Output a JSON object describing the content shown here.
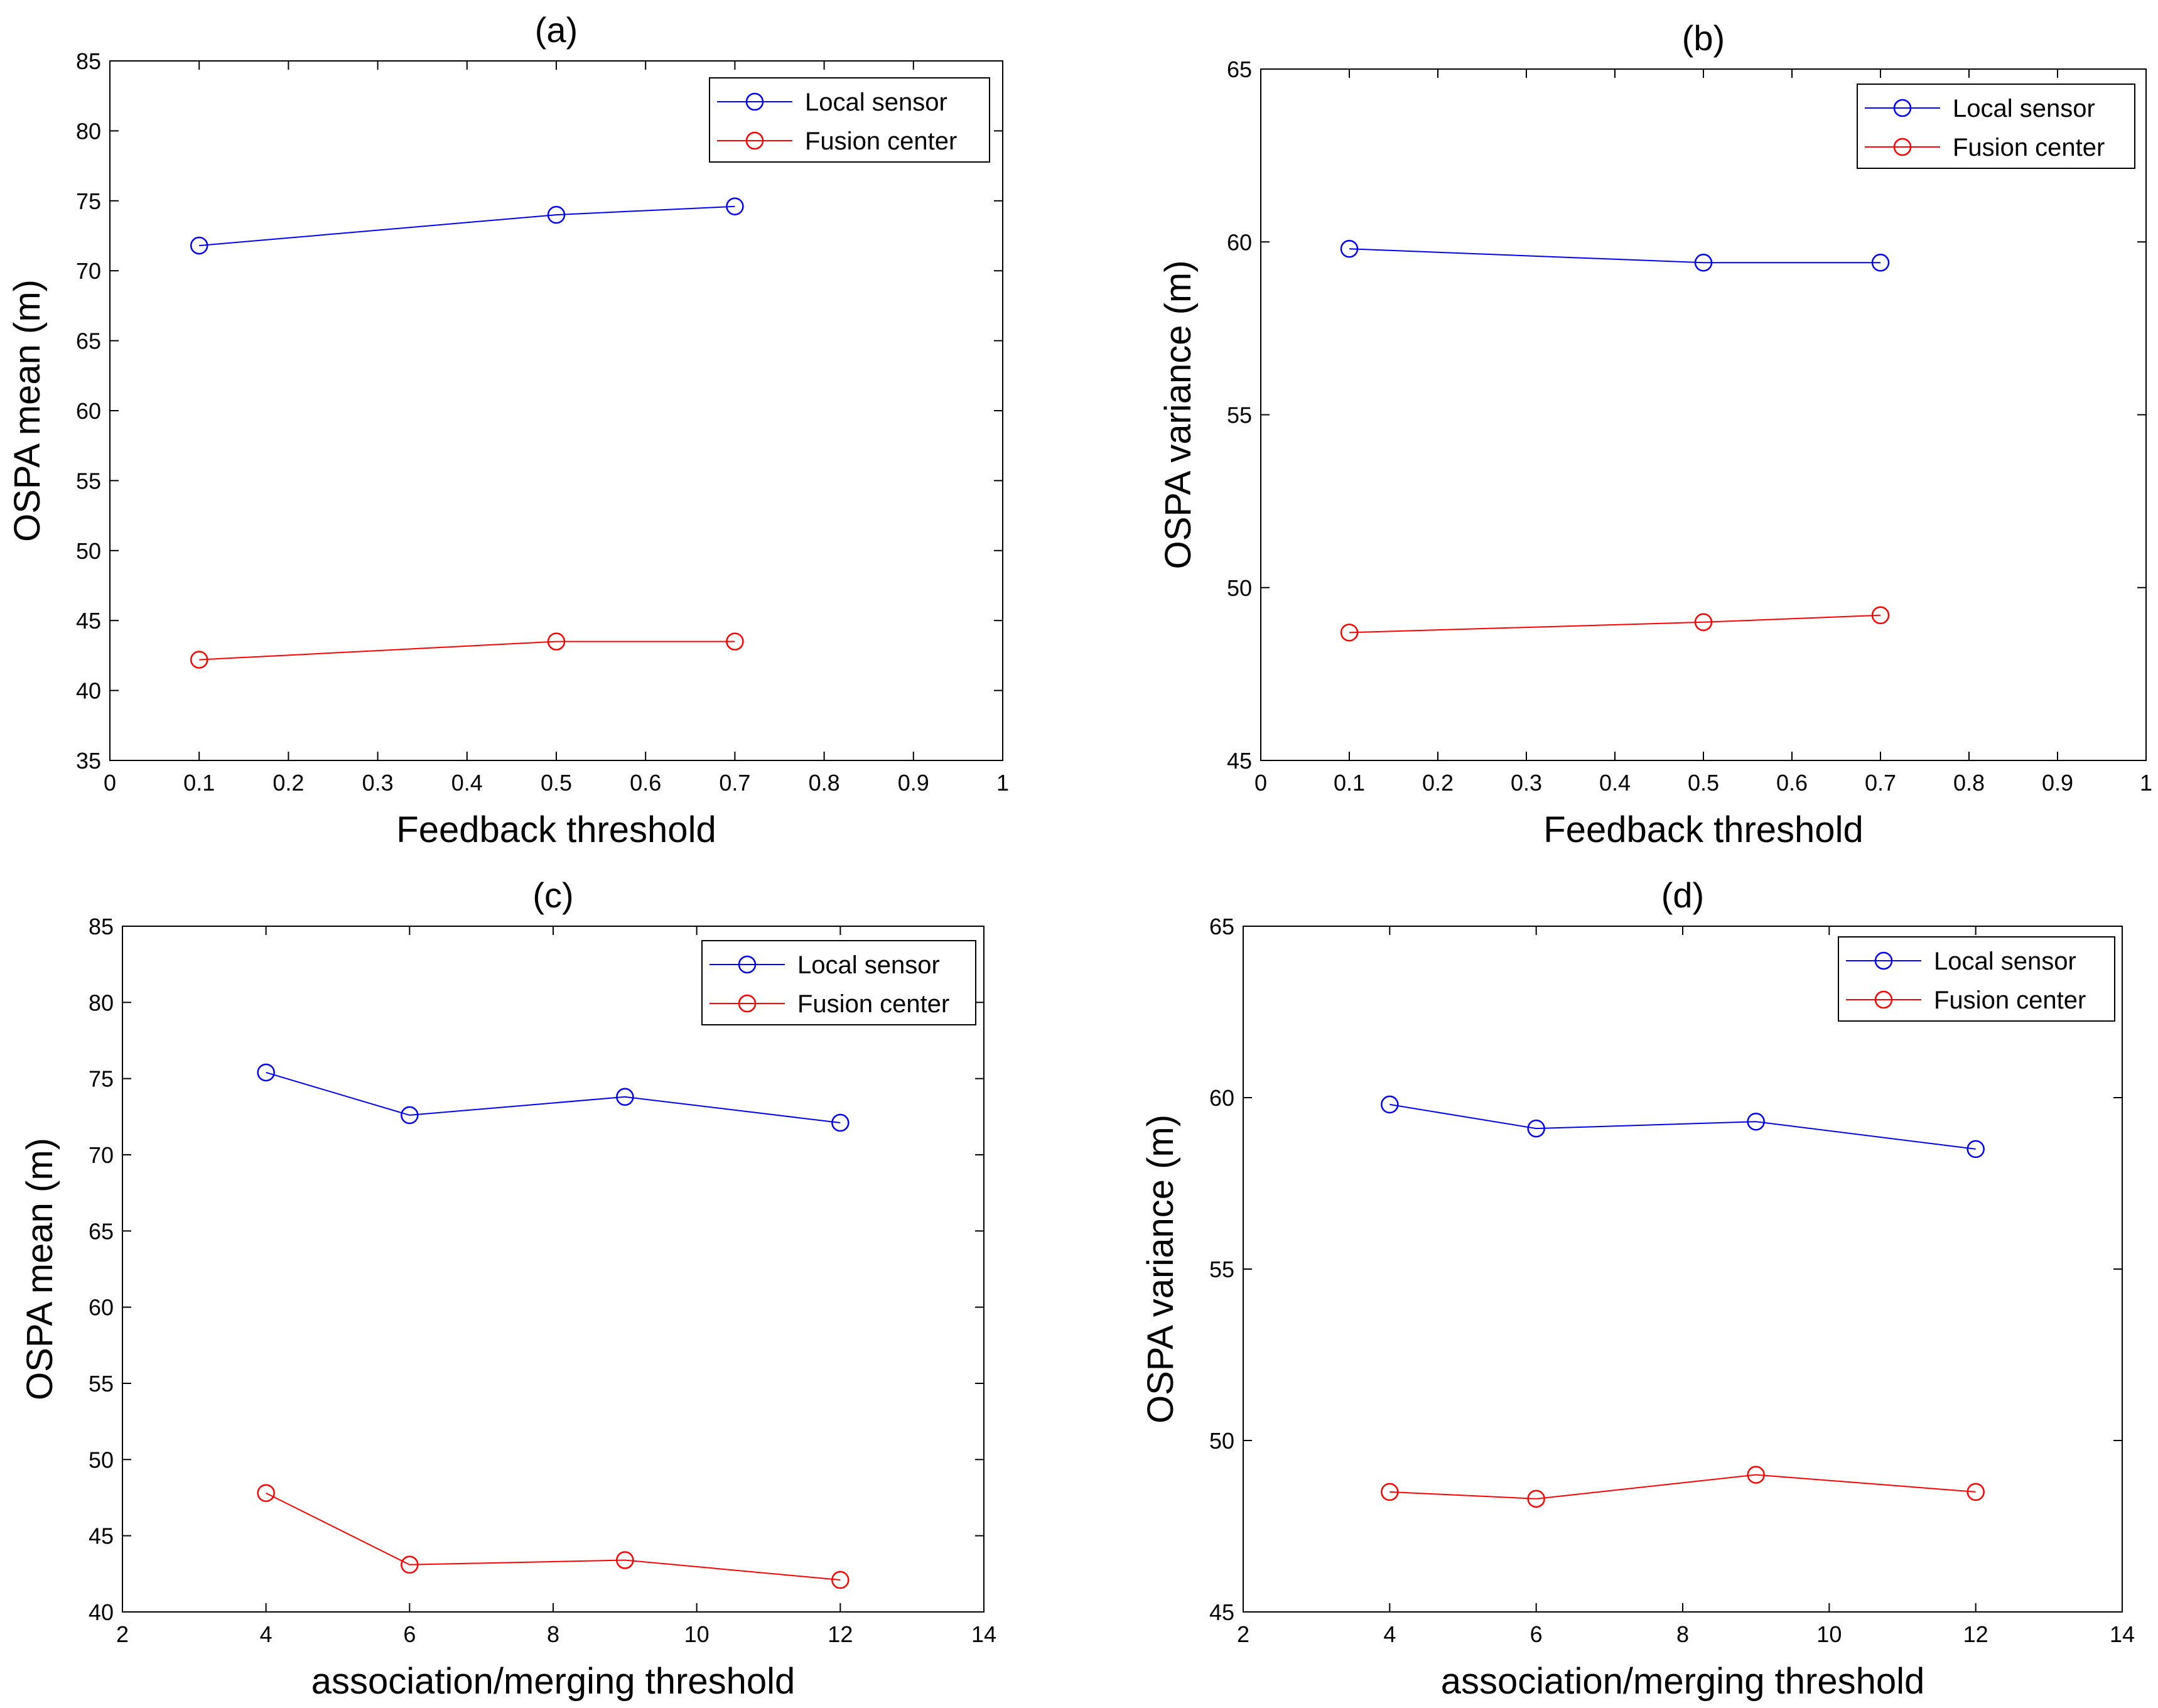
{
  "chart_data": [
    {
      "type": "line",
      "title": "(a)",
      "xlabel": "Feedback threshold",
      "ylabel": "OSPA mean (m)",
      "xlim": [
        0,
        1
      ],
      "ylim": [
        35,
        85
      ],
      "xticks": [
        0,
        0.1,
        0.2,
        0.3,
        0.4,
        0.5,
        0.6,
        0.7,
        0.8,
        0.9,
        1
      ],
      "xtick_labels": [
        "0",
        "0.1",
        "0.2",
        "0.3",
        "0.4",
        "0.5",
        "0.6",
        "0.7",
        "0.8",
        "0.9",
        "1"
      ],
      "yticks": [
        35,
        40,
        45,
        50,
        55,
        60,
        65,
        70,
        75,
        80,
        85
      ],
      "ytick_labels": [
        "35",
        "40",
        "45",
        "50",
        "55",
        "60",
        "65",
        "70",
        "75",
        "80",
        "85"
      ],
      "legend_position": "top-right",
      "series": [
        {
          "name": "Local sensor",
          "color": "#0000ff",
          "x": [
            0.1,
            0.5,
            0.7
          ],
          "y": [
            71.8,
            74.0,
            74.6
          ]
        },
        {
          "name": "Fusion center",
          "color": "#ff0000",
          "x": [
            0.1,
            0.5,
            0.7
          ],
          "y": [
            42.2,
            43.5,
            43.5
          ]
        }
      ]
    },
    {
      "type": "line",
      "title": "(b)",
      "xlabel": "Feedback threshold",
      "ylabel": "OSPA variance (m)",
      "xlim": [
        0,
        1
      ],
      "ylim": [
        45,
        65
      ],
      "xticks": [
        0,
        0.1,
        0.2,
        0.3,
        0.4,
        0.5,
        0.6,
        0.7,
        0.8,
        0.9,
        1
      ],
      "xtick_labels": [
        "0",
        "0.1",
        "0.2",
        "0.3",
        "0.4",
        "0.5",
        "0.6",
        "0.7",
        "0.8",
        "0.9",
        "1"
      ],
      "yticks": [
        45,
        50,
        55,
        60,
        65
      ],
      "ytick_labels": [
        "45",
        "50",
        "55",
        "60",
        "65"
      ],
      "legend_position": "top-right",
      "series": [
        {
          "name": "Local sensor",
          "color": "#0000ff",
          "x": [
            0.1,
            0.5,
            0.7
          ],
          "y": [
            59.8,
            59.4,
            59.4
          ]
        },
        {
          "name": "Fusion center",
          "color": "#ff0000",
          "x": [
            0.1,
            0.5,
            0.7
          ],
          "y": [
            48.7,
            49.0,
            49.2
          ]
        }
      ]
    },
    {
      "type": "line",
      "title": "(c)",
      "xlabel": "association/merging threshold",
      "ylabel": "OSPA mean (m)",
      "xlim": [
        2,
        14
      ],
      "ylim": [
        40,
        85
      ],
      "xticks": [
        2,
        4,
        6,
        8,
        10,
        12,
        14
      ],
      "xtick_labels": [
        "2",
        "4",
        "6",
        "8",
        "10",
        "12",
        "14"
      ],
      "yticks": [
        40,
        45,
        50,
        55,
        60,
        65,
        70,
        75,
        80,
        85
      ],
      "ytick_labels": [
        "40",
        "45",
        "50",
        "55",
        "60",
        "65",
        "70",
        "75",
        "80",
        "85"
      ],
      "legend_position": "top-right",
      "series": [
        {
          "name": "Local sensor",
          "color": "#0000ff",
          "x": [
            4,
            6,
            9,
            12
          ],
          "y": [
            75.4,
            72.6,
            73.8,
            72.1
          ]
        },
        {
          "name": "Fusion center",
          "color": "#ff0000",
          "x": [
            4,
            6,
            9,
            12
          ],
          "y": [
            47.8,
            43.1,
            43.4,
            42.1
          ]
        }
      ]
    },
    {
      "type": "line",
      "title": "(d)",
      "xlabel": "association/merging threshold",
      "ylabel": "OSPA variance (m)",
      "xlim": [
        2,
        14
      ],
      "ylim": [
        45,
        65
      ],
      "xticks": [
        2,
        4,
        6,
        8,
        10,
        12,
        14
      ],
      "xtick_labels": [
        "2",
        "4",
        "6",
        "8",
        "10",
        "12",
        "14"
      ],
      "yticks": [
        45,
        50,
        55,
        60,
        65
      ],
      "ytick_labels": [
        "45",
        "50",
        "55",
        "60",
        "65"
      ],
      "legend_position": "top-right",
      "series": [
        {
          "name": "Local sensor",
          "color": "#0000ff",
          "x": [
            4,
            6,
            9,
            12
          ],
          "y": [
            59.8,
            59.1,
            59.3,
            58.5
          ]
        },
        {
          "name": "Fusion center",
          "color": "#ff0000",
          "x": [
            4,
            6,
            9,
            12
          ],
          "y": [
            48.5,
            48.3,
            49.0,
            48.5
          ]
        }
      ]
    }
  ]
}
